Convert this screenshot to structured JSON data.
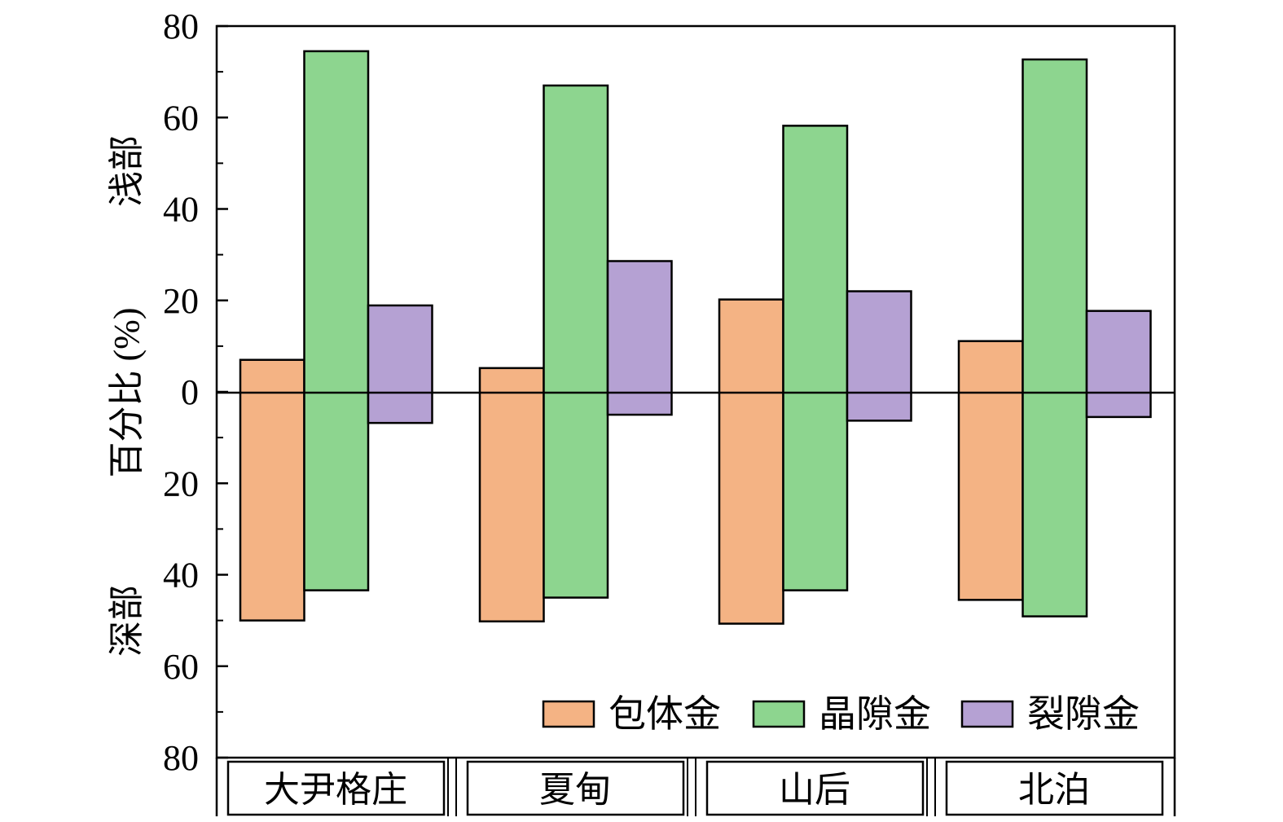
{
  "chart_data": {
    "type": "bar",
    "title": "",
    "ylabel": "百分比 (%)",
    "ylabel_upper": "浅部",
    "ylabel_lower": "深部",
    "ylim": [
      -80,
      80
    ],
    "yticks": [
      80,
      60,
      40,
      20,
      0,
      -20,
      -40,
      -60,
      -80
    ],
    "ytick_labels": [
      "80",
      "60",
      "40",
      "20",
      "0",
      "20",
      "40",
      "60",
      "80"
    ],
    "categories": [
      "大尹格庄",
      "夏甸",
      "山后",
      "北泊"
    ],
    "legend_position": "bottom-right",
    "series": [
      {
        "name": "包体金",
        "color": "#F4B384",
        "shallow": [
          7.0,
          5.2,
          20.2,
          11.1
        ],
        "deep": [
          50.0,
          50.2,
          50.7,
          45.5
        ]
      },
      {
        "name": "晶隙金",
        "color": "#8DD58F",
        "shallow": [
          74.5,
          67.0,
          58.2,
          72.7
        ],
        "deep": [
          43.4,
          45.0,
          43.4,
          49.1
        ]
      },
      {
        "name": "裂隙金",
        "color": "#B5A1D3",
        "shallow": [
          18.9,
          28.6,
          22.0,
          17.7
        ],
        "deep": [
          6.8,
          5.0,
          6.3,
          5.5
        ]
      }
    ]
  }
}
